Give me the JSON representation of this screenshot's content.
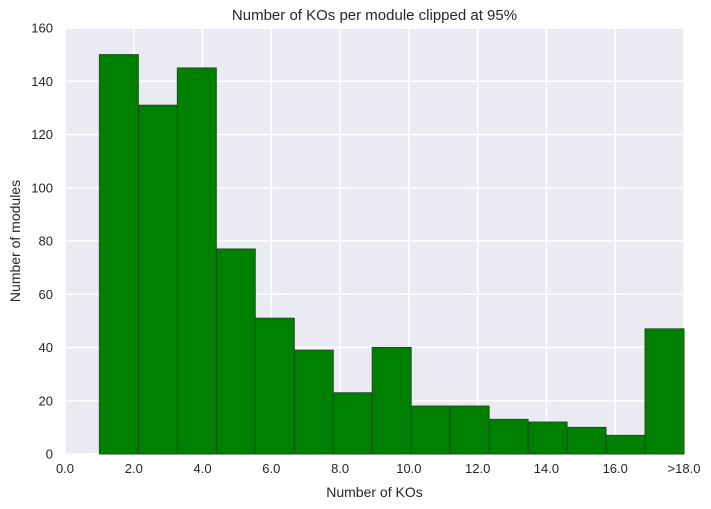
{
  "chart_data": {
    "type": "bar",
    "title": "Number of KOs per module clipped at 95%",
    "xlabel": "Number of KOs",
    "ylabel": "Number of modules",
    "xlim": [
      0,
      18
    ],
    "ylim": [
      0,
      160
    ],
    "grid": true,
    "bar_color": "#008000",
    "bar_edge_color": "#1f4d1f",
    "plot_background": "#eaeaf2",
    "grid_color": "#ffffff",
    "x_tick_values": [
      0,
      2,
      4,
      6,
      8,
      10,
      12,
      14,
      16,
      18
    ],
    "x_tick_labels": [
      "0.0",
      "2.0",
      "4.0",
      "6.0",
      "8.0",
      "10.0",
      "12.0",
      "14.0",
      "16.0",
      ">18.0"
    ],
    "y_tick_values": [
      0,
      20,
      40,
      60,
      80,
      100,
      120,
      140,
      160
    ],
    "y_tick_labels": [
      "0",
      "20",
      "40",
      "60",
      "80",
      "100",
      "120",
      "140",
      "160"
    ],
    "bins": [
      {
        "x0": 1.0,
        "x1": 2.133,
        "value": 150
      },
      {
        "x0": 2.133,
        "x1": 3.267,
        "value": 131
      },
      {
        "x0": 3.267,
        "x1": 4.4,
        "value": 145
      },
      {
        "x0": 4.4,
        "x1": 5.533,
        "value": 77
      },
      {
        "x0": 5.533,
        "x1": 6.667,
        "value": 51
      },
      {
        "x0": 6.667,
        "x1": 7.8,
        "value": 39
      },
      {
        "x0": 7.8,
        "x1": 8.933,
        "value": 23
      },
      {
        "x0": 8.933,
        "x1": 10.067,
        "value": 40
      },
      {
        "x0": 10.067,
        "x1": 11.2,
        "value": 18
      },
      {
        "x0": 11.2,
        "x1": 12.333,
        "value": 18
      },
      {
        "x0": 12.333,
        "x1": 13.467,
        "value": 13
      },
      {
        "x0": 13.467,
        "x1": 14.6,
        "value": 12
      },
      {
        "x0": 14.6,
        "x1": 15.733,
        "value": 10
      },
      {
        "x0": 15.733,
        "x1": 16.867,
        "value": 7
      },
      {
        "x0": 16.867,
        "x1": 18.0,
        "value": 47
      }
    ]
  }
}
